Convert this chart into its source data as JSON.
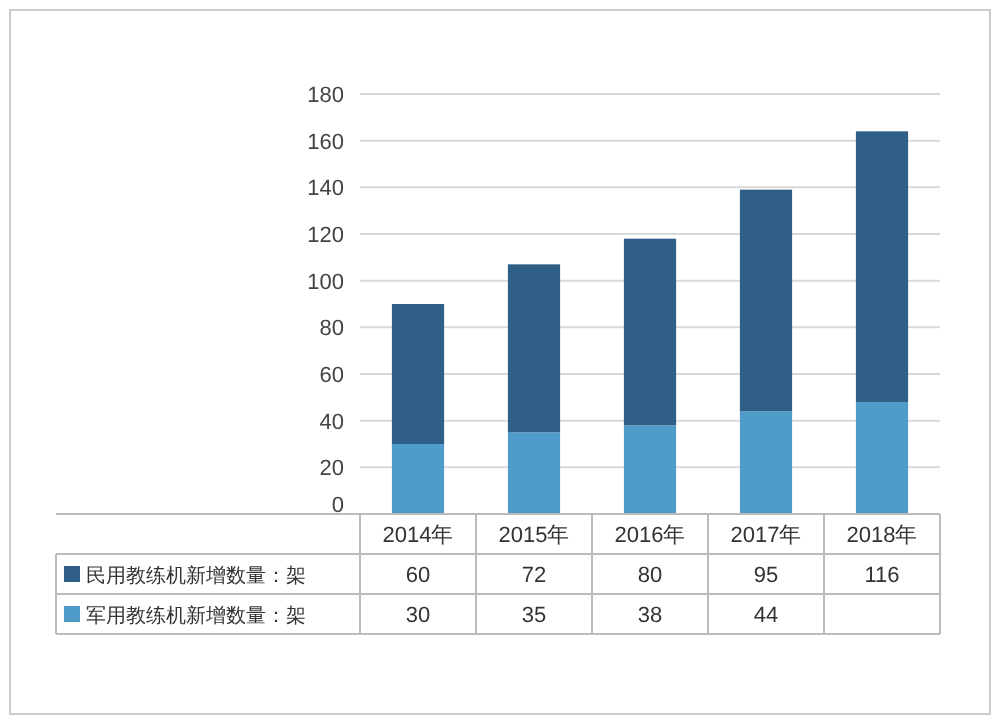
{
  "chart_data": {
    "type": "bar",
    "stacked": true,
    "categories": [
      "2014年",
      "2015年",
      "2016年",
      "2017年",
      "2018年"
    ],
    "series": [
      {
        "name": "军用教练机新增数量：架",
        "color": "#4f9ccb",
        "values": [
          30,
          35,
          38,
          44,
          48
        ],
        "value_labels": [
          "30",
          "35",
          "38",
          "44",
          null
        ]
      },
      {
        "name": "民用教练机新增数量：架",
        "color": "#2f5f86",
        "values": [
          60,
          72,
          80,
          95,
          116
        ],
        "value_labels": [
          "60",
          "72",
          "80",
          "95",
          "116"
        ]
      }
    ],
    "ylim": [
      0,
      180
    ],
    "yticks": [
      0,
      20,
      40,
      60,
      80,
      100,
      120,
      140,
      160,
      180
    ],
    "grid": "y",
    "legend": "bottom left"
  }
}
